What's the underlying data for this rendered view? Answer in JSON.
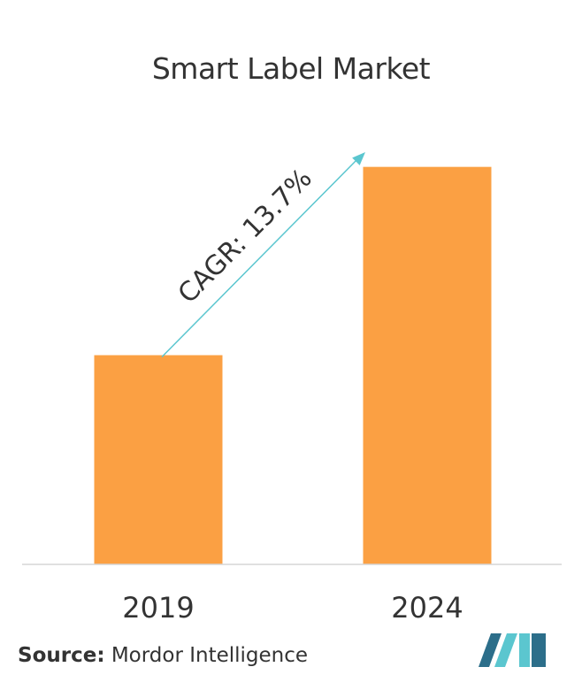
{
  "chart_data": {
    "type": "bar",
    "title": "Smart Label Market",
    "categories": [
      "2019",
      "2024"
    ],
    "values": [
      1,
      1.9
    ],
    "ylim": [
      0,
      2.0
    ],
    "xlabel": "",
    "ylabel": "",
    "grid": false,
    "bar_color": "#FBA043",
    "annotation": {
      "text": "CAGR: 13.7%",
      "arrow_color": "#5BC6CF"
    }
  },
  "source": {
    "label": "Source:",
    "text": "Mordor Intelligence"
  },
  "logo": {
    "colors": [
      "#2C6E8A",
      "#5BC6CF"
    ]
  }
}
